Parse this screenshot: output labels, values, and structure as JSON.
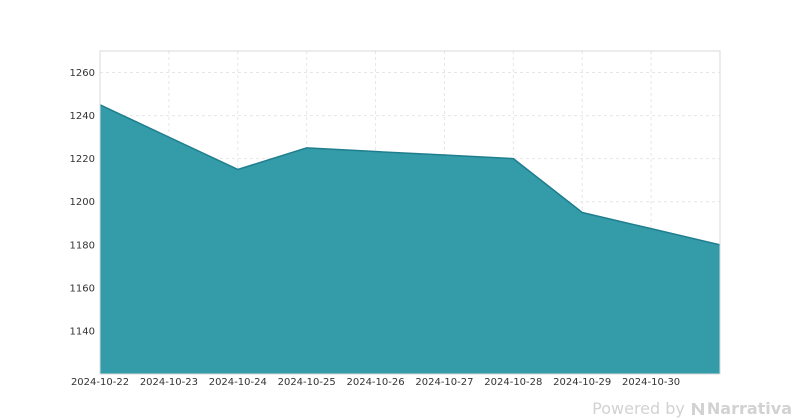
{
  "chart_data": {
    "type": "area",
    "x": [
      "2024-10-22",
      "2024-10-23",
      "2024-10-24",
      "2024-10-25",
      "2024-10-26",
      "2024-10-27",
      "2024-10-28",
      "2024-10-29",
      "2024-10-30",
      "2024-10-31"
    ],
    "x_tick_labels": [
      "2024-10-22",
      "2024-10-23",
      "2024-10-24",
      "2024-10-25",
      "2024-10-26",
      "2024-10-27",
      "2024-10-28",
      "2024-10-29",
      "2024-10-30"
    ],
    "series": [
      {
        "values": [
          1245,
          1230,
          1215,
          1225,
          1223.3,
          1221.7,
          1220,
          1195,
          1187.5,
          1180
        ]
      }
    ],
    "y_ticks": [
      1140,
      1160,
      1180,
      1200,
      1220,
      1240,
      1260
    ],
    "ylim": [
      1120,
      1270
    ],
    "grid": true,
    "fill_color": "#349ba9",
    "line_color": "#1f7e8e"
  },
  "watermark": {
    "powered_by": "Powered by",
    "brand": "Narrativa"
  }
}
